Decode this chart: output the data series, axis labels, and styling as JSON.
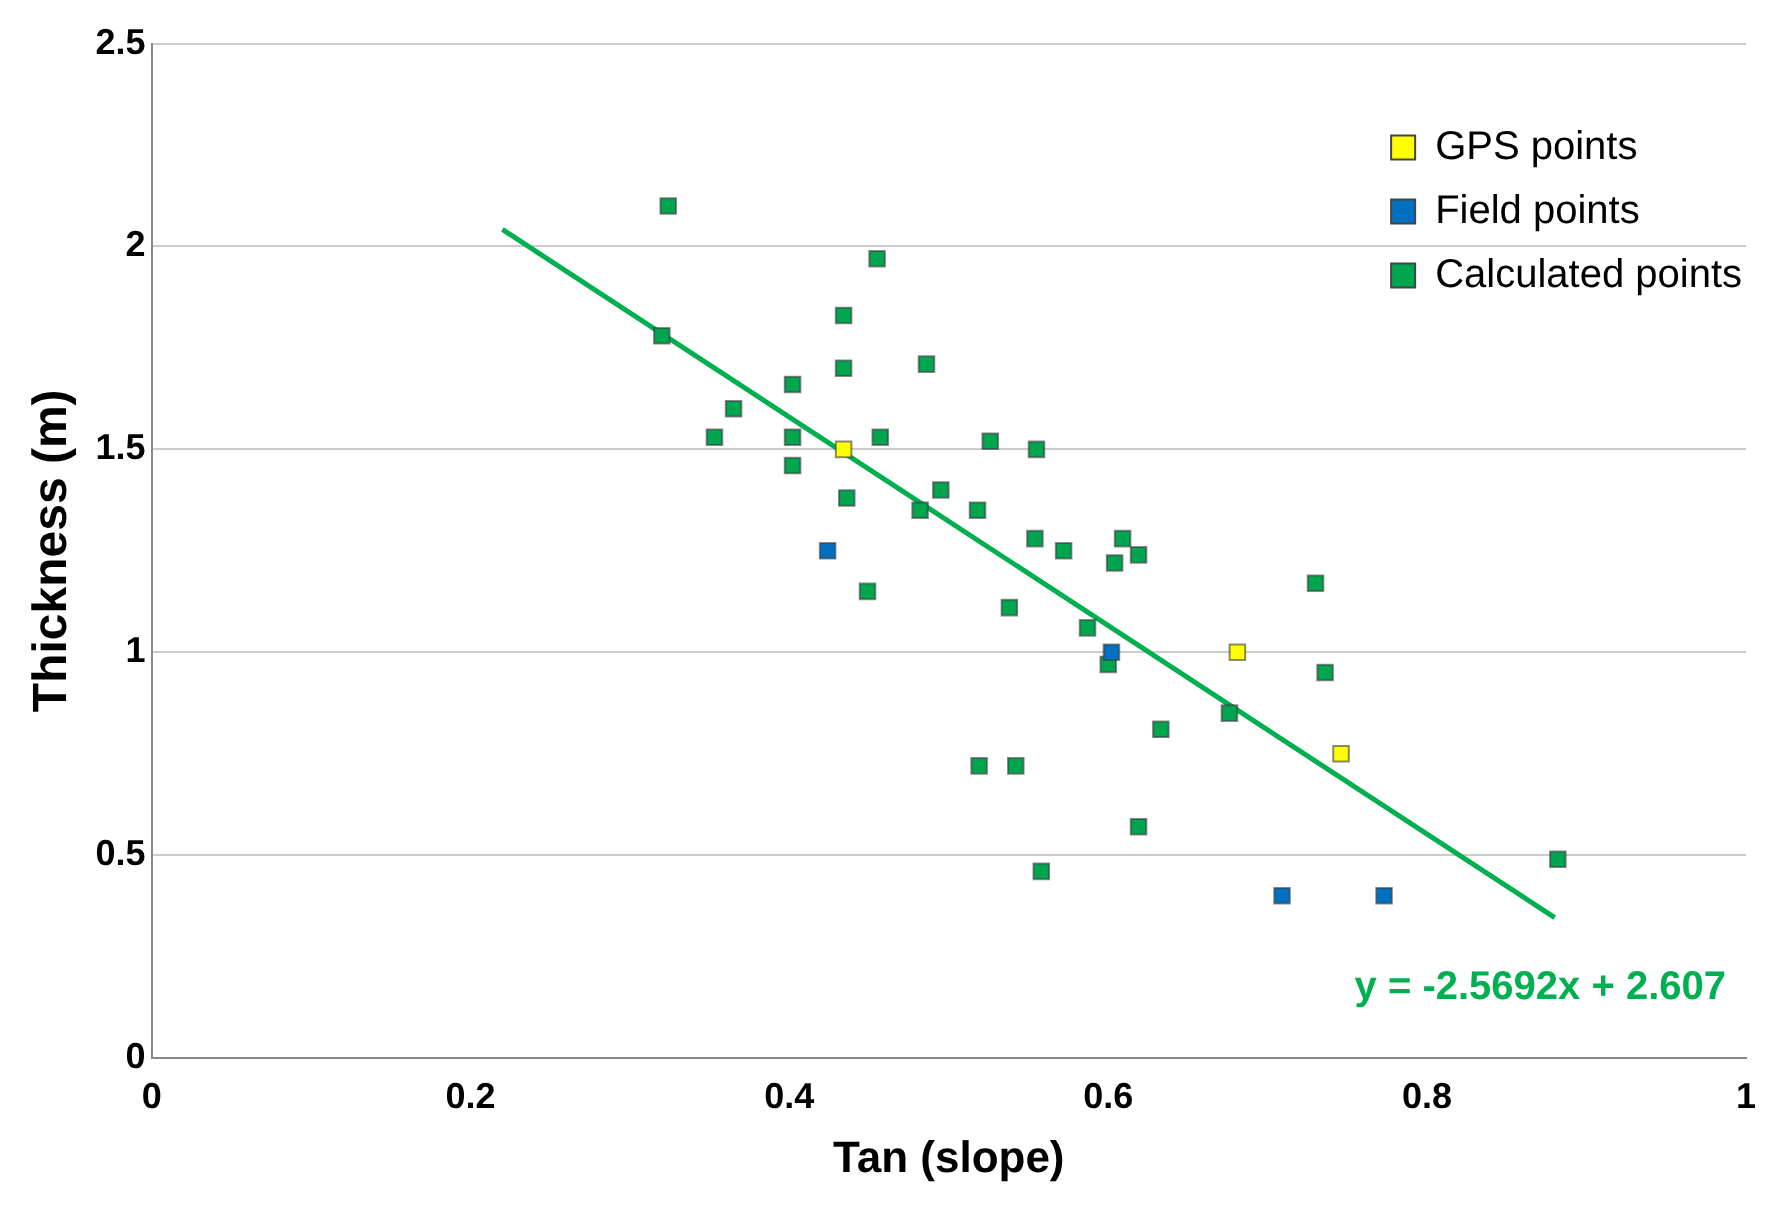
{
  "chart_data": {
    "type": "scatter",
    "xlabel": "Tan (slope)",
    "ylabel": "Thickness (m)",
    "xlim": [
      0,
      1
    ],
    "xticks": [
      0,
      0.2,
      0.4,
      0.6,
      0.8,
      1
    ],
    "ylim": [
      0,
      2.5
    ],
    "yticks": [
      0,
      0.5,
      1,
      1.5,
      2,
      2.5
    ],
    "grid": "y",
    "legend": "top right",
    "marker": "square",
    "annotations": [
      "y = -2.5692x + 2.607"
    ],
    "series": [
      {
        "name": "GPS points",
        "color": "#ffff00",
        "x": [
          0.434,
          0.681,
          0.746
        ],
        "values": [
          1.5,
          1.0,
          0.75
        ]
      },
      {
        "name": "Field points",
        "color": "#0070c0",
        "x": [
          0.424,
          0.602,
          0.709,
          0.773
        ],
        "values": [
          1.25,
          1.0,
          0.4,
          0.4
        ]
      },
      {
        "name": "Calculated points",
        "color": "#00a550",
        "x": [
          0.324,
          0.32,
          0.365,
          0.353,
          0.434,
          0.434,
          0.402,
          0.402,
          0.402,
          0.486,
          0.455,
          0.457,
          0.436,
          0.449,
          0.482,
          0.495,
          0.526,
          0.555,
          0.518,
          0.554,
          0.572,
          0.609,
          0.604,
          0.619,
          0.538,
          0.587,
          0.6,
          0.73,
          0.736,
          0.676,
          0.633,
          0.519,
          0.542,
          0.619,
          0.558,
          0.882
        ],
        "values": [
          2.1,
          1.78,
          1.6,
          1.53,
          1.83,
          1.7,
          1.66,
          1.53,
          1.46,
          1.71,
          1.97,
          1.53,
          1.38,
          1.15,
          1.35,
          1.4,
          1.52,
          1.5,
          1.35,
          1.28,
          1.25,
          1.28,
          1.22,
          1.24,
          1.11,
          1.06,
          0.97,
          1.17,
          0.95,
          0.85,
          0.81,
          0.72,
          0.72,
          0.57,
          0.46,
          0.49
        ]
      },
      {
        "type": "line",
        "color": "#00b050",
        "x": [
          0.22,
          0.88
        ],
        "values": [
          2.042,
          0.346
        ],
        "marker": "none"
      }
    ]
  }
}
